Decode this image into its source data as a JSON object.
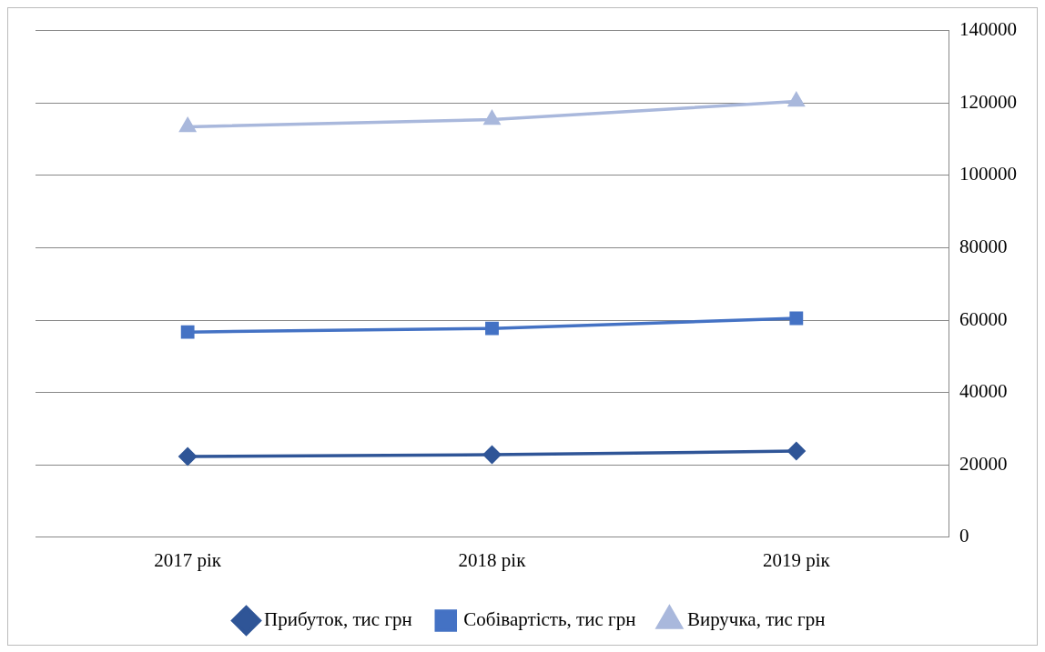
{
  "chart_data": {
    "type": "line",
    "categories": [
      "2017 рік",
      "2018 рік",
      "2019 рік"
    ],
    "series": [
      {
        "name": "Прибуток, тис грн",
        "color": "#2f5597",
        "marker": "diamond",
        "values": [
          22300,
          22800,
          23800
        ]
      },
      {
        "name": "Собівартість, тис грн",
        "color": "#4472c4",
        "marker": "square",
        "values": [
          56700,
          57700,
          60500
        ]
      },
      {
        "name": "Виручка, тис грн",
        "color": "#a9b8dc",
        "marker": "triangle",
        "values": [
          113400,
          115400,
          120400
        ]
      }
    ],
    "ylim": [
      0,
      140000
    ],
    "yticks": [
      0,
      20000,
      40000,
      60000,
      80000,
      100000,
      120000,
      140000
    ],
    "grid": "y",
    "legend": "bottom"
  }
}
